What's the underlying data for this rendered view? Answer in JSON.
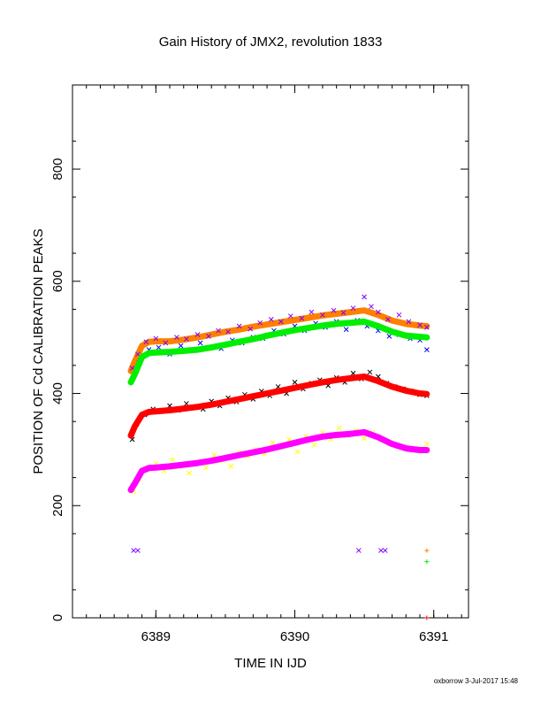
{
  "chart_data": {
    "type": "scatter",
    "title": "Gain History of JMX2, revolution 1833",
    "xlabel": "TIME IN IJD",
    "ylabel": "POSITION OF Cd CALIBRATION PEAKS",
    "xlim": [
      6388.4,
      6391.25
    ],
    "ylim": [
      0,
      950
    ],
    "x_ticks": [
      "6389",
      "6390",
      "6391"
    ],
    "y_ticks": [
      "0",
      "200",
      "400",
      "600",
      "800"
    ],
    "x_tick_values": [
      6389,
      6390,
      6391
    ],
    "y_tick_values": [
      0,
      200,
      400,
      600,
      800
    ],
    "grid": false,
    "series": [
      {
        "color": "#ff8000",
        "marker": "curve",
        "x": [
          6388.82,
          6388.85,
          6388.9,
          6388.95,
          6389.0,
          6389.1,
          6389.2,
          6389.3,
          6389.4,
          6389.5,
          6389.6,
          6389.7,
          6389.8,
          6389.9,
          6390.0,
          6390.1,
          6390.2,
          6390.3,
          6390.4,
          6390.5,
          6390.6,
          6390.7,
          6390.8,
          6390.9,
          6390.95
        ],
        "y": [
          440,
          458,
          485,
          492,
          493,
          493,
          496,
          500,
          505,
          510,
          514,
          519,
          523,
          527,
          531,
          535,
          539,
          542,
          545,
          548,
          540,
          530,
          524,
          521,
          520
        ]
      },
      {
        "color": "#8000ff",
        "marker": "x",
        "x": [
          6388.83,
          6388.87,
          6388.93,
          6389.0,
          6389.07,
          6389.15,
          6389.22,
          6389.3,
          6389.38,
          6389.45,
          6389.52,
          6389.6,
          6389.68,
          6389.75,
          6389.83,
          6389.9,
          6389.97,
          6390.05,
          6390.12,
          6390.2,
          6390.28,
          6390.35,
          6390.42,
          6390.5,
          6390.55,
          6390.6,
          6390.67,
          6390.75,
          6390.82,
          6390.9,
          6390.95
        ],
        "y": [
          445,
          470,
          492,
          498,
          490,
          500,
          497,
          505,
          502,
          512,
          510,
          520,
          515,
          526,
          532,
          528,
          538,
          534,
          545,
          540,
          548,
          544,
          552,
          572,
          555,
          545,
          532,
          540,
          528,
          522,
          518
        ]
      },
      {
        "color": "#0000ff",
        "marker": "x",
        "x": [
          6388.83,
          6388.88,
          6388.95,
          6389.02,
          6389.1,
          6389.18,
          6389.25,
          6389.32,
          6389.4,
          6389.47,
          6389.55,
          6389.62,
          6389.7,
          6389.77,
          6389.85,
          6389.92,
          6390.0,
          6390.07,
          6390.15,
          6390.22,
          6390.3,
          6390.37,
          6390.45,
          6390.52,
          6390.6,
          6390.68,
          6390.75,
          6390.83,
          6390.9,
          6390.95
        ],
        "y": [
          425,
          455,
          478,
          482,
          470,
          485,
          478,
          490,
          483,
          480,
          495,
          490,
          500,
          498,
          512,
          506,
          520,
          512,
          525,
          518,
          528,
          514,
          530,
          520,
          512,
          502,
          505,
          498,
          495,
          478
        ]
      },
      {
        "color": "#00ee00",
        "marker": "curve",
        "x": [
          6388.82,
          6388.85,
          6388.9,
          6388.95,
          6389.0,
          6389.1,
          6389.2,
          6389.3,
          6389.4,
          6389.5,
          6389.6,
          6389.7,
          6389.8,
          6389.9,
          6390.0,
          6390.1,
          6390.2,
          6390.3,
          6390.4,
          6390.5,
          6390.6,
          6390.7,
          6390.8,
          6390.9,
          6390.95
        ],
        "y": [
          420,
          435,
          465,
          472,
          473,
          474,
          476,
          478,
          482,
          487,
          492,
          497,
          503,
          508,
          513,
          517,
          521,
          524,
          526,
          528,
          520,
          510,
          503,
          501,
          500
        ]
      },
      {
        "color": "#000000",
        "marker": "x",
        "x": [
          6388.83,
          6388.86,
          6388.92,
          6388.98,
          6389.04,
          6389.1,
          6389.16,
          6389.22,
          6389.28,
          6389.34,
          6389.4,
          6389.46,
          6389.52,
          6389.58,
          6389.64,
          6389.7,
          6389.76,
          6389.82,
          6389.88,
          6389.94,
          6390.0,
          6390.06,
          6390.12,
          6390.18,
          6390.24,
          6390.3,
          6390.36,
          6390.42,
          6390.48,
          6390.54,
          6390.6,
          6390.66,
          6390.72,
          6390.78,
          6390.84,
          6390.9,
          6390.95
        ],
        "y": [
          318,
          345,
          362,
          372,
          368,
          378,
          370,
          382,
          376,
          372,
          386,
          378,
          392,
          385,
          398,
          390,
          404,
          396,
          412,
          400,
          420,
          408,
          418,
          424,
          414,
          428,
          420,
          436,
          426,
          438,
          430,
          418,
          412,
          408,
          404,
          398,
          396
        ]
      },
      {
        "color": "#ff0000",
        "marker": "curve",
        "x": [
          6388.82,
          6388.85,
          6388.9,
          6388.95,
          6389.0,
          6389.1,
          6389.2,
          6389.3,
          6389.4,
          6389.5,
          6389.6,
          6389.7,
          6389.8,
          6389.9,
          6390.0,
          6390.1,
          6390.2,
          6390.3,
          6390.4,
          6390.5,
          6390.6,
          6390.7,
          6390.8,
          6390.9,
          6390.95
        ],
        "y": [
          325,
          342,
          362,
          367,
          368,
          370,
          373,
          376,
          380,
          385,
          390,
          395,
          400,
          405,
          410,
          415,
          420,
          424,
          427,
          430,
          422,
          412,
          405,
          400,
          399
        ]
      },
      {
        "color": "#ffff00",
        "marker": "x",
        "x": [
          6388.84,
          6388.88,
          6388.94,
          6389.0,
          6389.06,
          6389.12,
          6389.18,
          6389.24,
          6389.3,
          6389.36,
          6389.42,
          6389.48,
          6389.54,
          6389.6,
          6389.66,
          6389.72,
          6389.78,
          6389.84,
          6389.9,
          6389.96,
          6390.02,
          6390.08,
          6390.14,
          6390.2,
          6390.26,
          6390.32,
          6390.38,
          6390.44,
          6390.5,
          6390.56,
          6390.62,
          6390.68,
          6390.74,
          6390.8,
          6390.86,
          6390.92,
          6390.95
        ],
        "y": [
          225,
          248,
          268,
          275,
          262,
          282,
          270,
          258,
          278,
          268,
          290,
          280,
          270,
          295,
          288,
          300,
          292,
          312,
          304,
          318,
          296,
          324,
          308,
          330,
          318,
          338,
          325,
          334,
          320,
          330,
          318,
          310,
          306,
          304,
          300,
          298,
          310
        ]
      },
      {
        "color": "#ff00ff",
        "marker": "curve",
        "x": [
          6388.82,
          6388.85,
          6388.9,
          6388.95,
          6389.0,
          6389.1,
          6389.2,
          6389.3,
          6389.4,
          6389.5,
          6389.6,
          6389.7,
          6389.8,
          6389.9,
          6390.0,
          6390.1,
          6390.2,
          6390.3,
          6390.4,
          6390.5,
          6390.6,
          6390.7,
          6390.8,
          6390.9,
          6390.95
        ],
        "y": [
          228,
          240,
          262,
          267,
          268,
          270,
          273,
          276,
          280,
          285,
          290,
          295,
          300,
          306,
          312,
          318,
          323,
          326,
          328,
          331,
          322,
          310,
          302,
          299,
          299
        ]
      },
      {
        "color": "#8000ff",
        "marker": "x",
        "x": [
          6388.84,
          6388.87,
          6390.46,
          6390.62,
          6390.65
        ],
        "y": [
          120,
          120,
          120,
          120,
          120
        ]
      },
      {
        "color": "#ff8000",
        "marker": "+",
        "x": [
          6390.95
        ],
        "y": [
          120
        ]
      },
      {
        "color": "#00ee00",
        "marker": "+",
        "x": [
          6390.95
        ],
        "y": [
          100
        ]
      },
      {
        "color": "#ff0000",
        "marker": "+",
        "x": [
          6390.95
        ],
        "y": [
          0
        ]
      }
    ]
  },
  "footer": {
    "credit": "oxborrow  3-Jul-2017 15:48"
  }
}
